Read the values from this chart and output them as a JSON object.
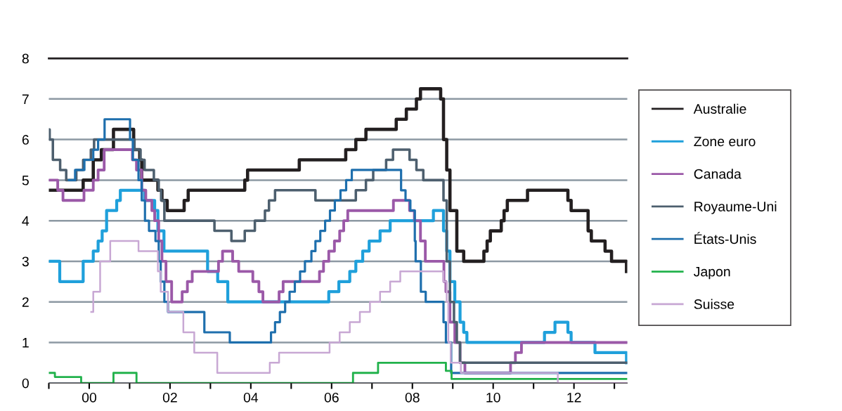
{
  "chart_data": {
    "type": "step",
    "xlim": [
      1999.0,
      2013.32
    ],
    "ylim": [
      0,
      8
    ],
    "xticks": [
      {
        "value": 1999,
        "label": null
      },
      {
        "value": 2000,
        "label": "00"
      },
      {
        "value": 2001,
        "label": null
      },
      {
        "value": 2002,
        "label": "02"
      },
      {
        "value": 2003,
        "label": null
      },
      {
        "value": 2004,
        "label": "04"
      },
      {
        "value": 2005,
        "label": null
      },
      {
        "value": 2006,
        "label": "06"
      },
      {
        "value": 2007,
        "label": null
      },
      {
        "value": 2008,
        "label": "08"
      },
      {
        "value": 2009,
        "label": null
      },
      {
        "value": 2010,
        "label": "10"
      },
      {
        "value": 2011,
        "label": null
      },
      {
        "value": 2012,
        "label": "12"
      },
      {
        "value": 2013,
        "label": null
      }
    ],
    "yticks": [
      0,
      1,
      2,
      3,
      4,
      5,
      6,
      7,
      8
    ],
    "grid": "y",
    "legend": "right",
    "line_style": "solid",
    "marker": "none",
    "series": [
      {
        "name": "Australie",
        "color": "#231f20",
        "x": [
          1999.0,
          1999.85,
          2000.1,
          2000.3,
          2000.6,
          2001.1,
          2001.25,
          2001.3,
          2001.7,
          2001.8,
          2001.93,
          2002.35,
          2002.45,
          2003.85,
          2003.92,
          2005.2,
          2006.35,
          2006.6,
          2006.85,
          2007.6,
          2007.85,
          2008.1,
          2008.2,
          2008.7,
          2008.77,
          2008.85,
          2008.93,
          2009.1,
          2009.27,
          2009.77,
          2009.85,
          2009.93,
          2010.2,
          2010.27,
          2010.35,
          2010.85,
          2011.85,
          2011.93,
          2012.35,
          2012.43,
          2012.77,
          2012.93,
          2013.3
        ],
        "values": [
          4.75,
          5.0,
          5.5,
          5.75,
          6.25,
          5.75,
          5.5,
          5.0,
          4.75,
          4.5,
          4.25,
          4.5,
          4.75,
          5.0,
          5.25,
          5.5,
          5.75,
          6.0,
          6.25,
          6.5,
          6.75,
          7.0,
          7.25,
          7.0,
          6.0,
          5.25,
          4.25,
          3.25,
          3.0,
          3.25,
          3.5,
          3.75,
          4.0,
          4.25,
          4.5,
          4.75,
          4.5,
          4.25,
          3.75,
          3.5,
          3.25,
          3.0,
          2.75
        ]
      },
      {
        "name": "Zone euro",
        "color": "#1fa0db",
        "x": [
          1999.0,
          1999.27,
          1999.85,
          2000.1,
          2000.22,
          2000.32,
          2000.43,
          2000.68,
          2000.77,
          2001.37,
          2001.62,
          2001.7,
          2001.85,
          2002.93,
          2003.18,
          2003.43,
          2005.93,
          2006.18,
          2006.45,
          2006.6,
          2006.77,
          2006.93,
          2007.2,
          2007.45,
          2008.52,
          2008.77,
          2008.85,
          2008.93,
          2009.05,
          2009.18,
          2009.27,
          2009.35,
          2011.27,
          2011.53,
          2011.85,
          2011.93,
          2012.52,
          2013.3
        ],
        "values": [
          3.0,
          2.5,
          3.0,
          3.25,
          3.5,
          3.75,
          4.25,
          4.5,
          4.75,
          4.5,
          4.25,
          3.75,
          3.25,
          2.75,
          2.5,
          2.0,
          2.25,
          2.5,
          2.75,
          3.0,
          3.25,
          3.5,
          3.75,
          4.0,
          4.25,
          3.75,
          3.25,
          2.5,
          2.0,
          1.5,
          1.25,
          1.0,
          1.25,
          1.5,
          1.25,
          1.0,
          0.75,
          0.5
        ]
      },
      {
        "name": "Canada",
        "color": "#9b59a8",
        "x": [
          1999.0,
          1999.22,
          1999.35,
          1999.87,
          2000.1,
          2000.22,
          2000.37,
          2001.07,
          2001.17,
          2001.3,
          2001.4,
          2001.55,
          2001.62,
          2001.72,
          2001.8,
          2001.9,
          2002.04,
          2002.3,
          2002.43,
          2002.55,
          2003.2,
          2003.3,
          2003.55,
          2003.7,
          2004.05,
          2004.2,
          2004.3,
          2004.7,
          2004.8,
          2005.7,
          2005.8,
          2005.93,
          2006.07,
          2006.2,
          2006.3,
          2006.4,
          2007.53,
          2007.93,
          2008.05,
          2008.2,
          2008.32,
          2008.78,
          2008.83,
          2008.93,
          2009.05,
          2009.18,
          2009.3,
          2010.43,
          2010.55,
          2010.7,
          2013.3
        ],
        "values": [
          5.0,
          4.75,
          4.5,
          4.75,
          5.0,
          5.25,
          5.75,
          5.5,
          5.25,
          4.75,
          4.5,
          4.25,
          4.0,
          3.5,
          3.0,
          2.5,
          2.0,
          2.25,
          2.5,
          2.75,
          3.0,
          3.25,
          3.0,
          2.75,
          2.5,
          2.25,
          2.0,
          2.25,
          2.5,
          2.75,
          3.0,
          3.25,
          3.5,
          3.75,
          4.0,
          4.25,
          4.5,
          4.25,
          4.0,
          3.5,
          3.0,
          2.5,
          2.25,
          1.5,
          1.0,
          0.5,
          0.25,
          0.5,
          0.75,
          1.0,
          1.0
        ]
      },
      {
        "name": "Royaume-Uni",
        "color": "#4d5f6e",
        "x": [
          1999.0,
          1999.02,
          1999.1,
          1999.28,
          1999.43,
          1999.68,
          1999.85,
          2000.04,
          2000.12,
          2001.12,
          2001.27,
          2001.37,
          2001.6,
          2001.72,
          2001.78,
          2001.86,
          2003.1,
          2003.52,
          2003.85,
          2004.1,
          2004.35,
          2004.45,
          2004.6,
          2005.6,
          2006.6,
          2006.85,
          2007.03,
          2007.35,
          2007.52,
          2007.93,
          2008.1,
          2008.27,
          2008.77,
          2008.85,
          2008.93,
          2009.03,
          2009.1,
          2009.18,
          2013.3
        ],
        "values": [
          6.25,
          6.0,
          5.5,
          5.25,
          5.0,
          5.25,
          5.5,
          5.75,
          6.0,
          5.75,
          5.5,
          5.25,
          5.0,
          4.75,
          4.5,
          4.0,
          3.75,
          3.5,
          3.75,
          4.0,
          4.25,
          4.5,
          4.75,
          4.5,
          4.75,
          5.0,
          5.25,
          5.5,
          5.75,
          5.5,
          5.25,
          5.0,
          4.5,
          3.0,
          2.0,
          1.5,
          1.0,
          0.5,
          0.5
        ]
      },
      {
        "name": "États-Unis",
        "color": "#1e6fad",
        "x": [
          1999.5,
          1999.65,
          1999.88,
          2000.1,
          2000.22,
          2000.38,
          2001.01,
          2001.08,
          2001.22,
          2001.3,
          2001.38,
          2001.48,
          2001.64,
          2001.72,
          2001.77,
          2001.86,
          2001.95,
          2002.85,
          2003.48,
          2004.5,
          2004.6,
          2004.72,
          2004.85,
          2004.96,
          2005.09,
          2005.22,
          2005.34,
          2005.5,
          2005.6,
          2005.72,
          2005.84,
          2005.96,
          2006.08,
          2006.22,
          2006.36,
          2006.5,
          2007.72,
          2007.83,
          2007.95,
          2008.06,
          2008.08,
          2008.21,
          2008.33,
          2008.77,
          2008.83,
          2008.96,
          2013.3
        ],
        "values": [
          5.0,
          5.25,
          5.5,
          5.75,
          6.0,
          6.5,
          6.0,
          5.5,
          5.0,
          4.5,
          4.0,
          3.75,
          3.5,
          3.0,
          2.5,
          2.0,
          1.75,
          1.25,
          1.0,
          1.25,
          1.5,
          1.75,
          2.0,
          2.25,
          2.5,
          2.75,
          3.0,
          3.25,
          3.5,
          3.75,
          4.0,
          4.25,
          4.5,
          4.75,
          5.0,
          5.25,
          4.75,
          4.5,
          4.25,
          3.5,
          3.0,
          2.25,
          2.0,
          1.5,
          1.0,
          0.25,
          0.25
        ]
      },
      {
        "name": "Japon",
        "color": "#22b24c",
        "x": [
          1999.0,
          1999.15,
          1999.8,
          2000.6,
          2001.17,
          2006.53,
          2007.15,
          2008.83,
          2008.97,
          2013.3
        ],
        "values": [
          0.25,
          0.15,
          0.0,
          0.25,
          0.0,
          0.25,
          0.5,
          0.3,
          0.1,
          0.1
        ]
      },
      {
        "name": "Suisse",
        "color": "#c8a8d4",
        "x": [
          2000.05,
          2000.1,
          2000.27,
          2000.52,
          2001.22,
          2001.7,
          2001.77,
          2001.95,
          2002.33,
          2002.6,
          2003.17,
          2004.47,
          2004.7,
          2005.95,
          2006.2,
          2006.45,
          2006.7,
          2006.95,
          2007.2,
          2007.45,
          2007.7,
          2008.77,
          2008.85,
          2008.89,
          2008.95,
          2009.2,
          2011.6,
          2013.3
        ],
        "values": [
          1.75,
          2.25,
          3.0,
          3.5,
          3.25,
          2.75,
          2.25,
          1.75,
          1.25,
          0.75,
          0.25,
          0.5,
          0.75,
          1.0,
          1.25,
          1.5,
          1.75,
          2.0,
          2.25,
          2.5,
          2.75,
          2.5,
          2.0,
          1.0,
          0.5,
          0.25,
          0.0,
          0.0
        ]
      }
    ]
  }
}
